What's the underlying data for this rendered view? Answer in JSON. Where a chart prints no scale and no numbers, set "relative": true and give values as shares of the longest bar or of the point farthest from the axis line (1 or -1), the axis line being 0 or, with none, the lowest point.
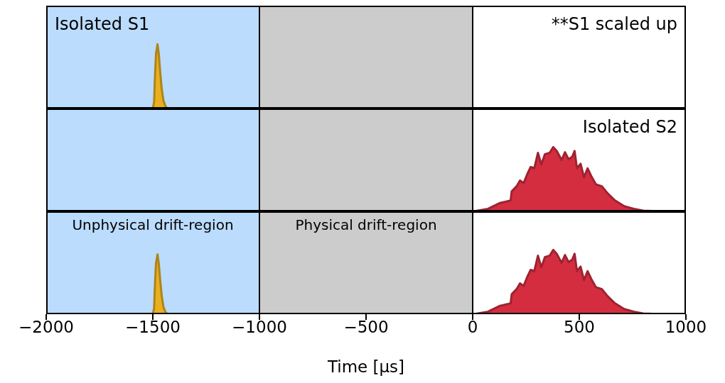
{
  "chart_data": [
    {
      "type": "area",
      "relative": true,
      "xlim": [
        -2000,
        1000
      ],
      "tick_labels": false,
      "annotations": [
        "Isolated S1",
        "**S1 scaled up"
      ],
      "bands": [
        {
          "axis": "x",
          "from": -2000,
          "to": -1000,
          "color": "#bbdcfc"
        },
        {
          "axis": "x",
          "from": -1000,
          "to": 0,
          "color": "#cccccc"
        }
      ],
      "series": [
        {
          "color": "#e8b020",
          "x": [
            -1500,
            -1494,
            -1490,
            -1485,
            -1478,
            -1472,
            -1465,
            -1458,
            -1450,
            -1440,
            -1430
          ],
          "values": [
            0,
            0.1,
            0.5,
            0.85,
            1,
            0.85,
            0.55,
            0.3,
            0.12,
            0.03,
            0
          ]
        }
      ]
    },
    {
      "type": "area",
      "relative": true,
      "xlim": [
        -2000,
        1000
      ],
      "tick_labels": false,
      "annotations": [
        "Isolated S2"
      ],
      "bands": [
        {
          "axis": "x",
          "from": -2000,
          "to": -1000,
          "color": "#bbdcfc"
        },
        {
          "axis": "x",
          "from": -1000,
          "to": 0,
          "color": "#cccccc"
        }
      ],
      "series": [
        {
          "color": "#d42d40",
          "x": [
            5,
            72,
            128,
            178,
            183,
            206,
            222,
            239,
            256,
            272,
            289,
            306,
            322,
            339,
            361,
            378,
            394,
            417,
            433,
            450,
            467,
            478,
            489,
            506,
            522,
            539,
            556,
            578,
            606,
            633,
            667,
            711,
            756,
            800,
            889
          ],
          "values": [
            0,
            0.04,
            0.13,
            0.17,
            0.31,
            0.39,
            0.48,
            0.44,
            0.58,
            0.69,
            0.67,
            0.91,
            0.73,
            0.89,
            0.91,
            1,
            0.94,
            0.8,
            0.92,
            0.81,
            0.85,
            0.94,
            0.67,
            0.74,
            0.53,
            0.67,
            0.55,
            0.42,
            0.39,
            0.28,
            0.17,
            0.08,
            0.04,
            0.01,
            0
          ]
        }
      ]
    },
    {
      "type": "area",
      "relative": true,
      "xlim": [
        -2000,
        1000
      ],
      "tick_labels": "x",
      "xlabel": "Time [µs]",
      "xticks": [
        {
          "value": -2000,
          "label": "−2000"
        },
        {
          "value": -1500,
          "label": "−1500"
        },
        {
          "value": -1000,
          "label": "−1000"
        },
        {
          "value": -500,
          "label": "−500"
        },
        0,
        500,
        1000
      ],
      "bands": [
        {
          "axis": "x",
          "from": -2000,
          "to": -1000,
          "color": "#bbdcfc",
          "label": "Unphysical drift-region"
        },
        {
          "axis": "x",
          "from": -1000,
          "to": 0,
          "color": "#cccccc",
          "label": "Physical drift-region"
        }
      ],
      "series": [
        {
          "color": "#e8b020",
          "x": [
            -1500,
            -1494,
            -1490,
            -1485,
            -1478,
            -1472,
            -1465,
            -1458,
            -1450,
            -1440,
            -1430
          ],
          "values": [
            0,
            0.093,
            0.465,
            0.79,
            0.93,
            0.79,
            0.51,
            0.28,
            0.11,
            0.028,
            0
          ]
        },
        {
          "color": "#d42d40",
          "x": [
            5,
            72,
            128,
            178,
            183,
            206,
            222,
            239,
            256,
            272,
            289,
            306,
            322,
            339,
            361,
            378,
            394,
            417,
            433,
            450,
            467,
            478,
            489,
            506,
            522,
            539,
            556,
            578,
            606,
            633,
            667,
            711,
            756,
            800,
            889
          ],
          "values": [
            0,
            0.04,
            0.13,
            0.17,
            0.31,
            0.39,
            0.48,
            0.44,
            0.58,
            0.69,
            0.67,
            0.91,
            0.73,
            0.89,
            0.91,
            1,
            0.94,
            0.8,
            0.92,
            0.81,
            0.85,
            0.94,
            0.67,
            0.74,
            0.53,
            0.67,
            0.55,
            0.42,
            0.39,
            0.28,
            0.17,
            0.08,
            0.04,
            0.01,
            0
          ]
        }
      ]
    }
  ]
}
